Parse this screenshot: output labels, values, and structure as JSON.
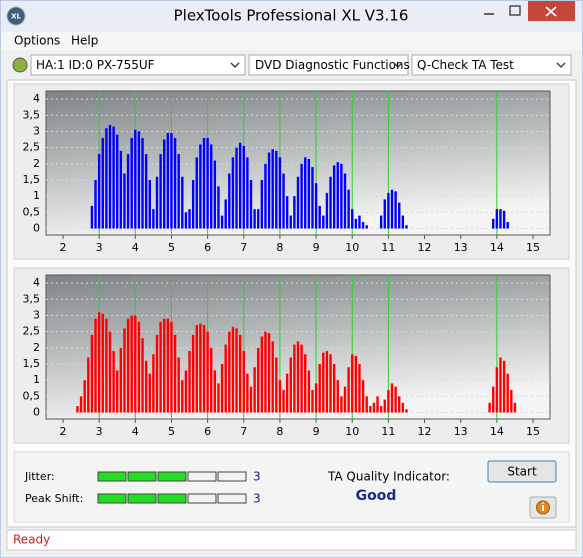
{
  "window": {
    "title": "PlexTools Professional XL V3.16",
    "icon": "XL"
  },
  "menu": [
    "Options",
    "Help"
  ],
  "toolbar": [
    "HA:1 ID:0  PX-755UF",
    "DVD Diagnostic Functions",
    "Q-Check TA Test"
  ],
  "chart_data": [
    {
      "type": "bar",
      "color": "#0000ff",
      "grid": true,
      "marker_color": "#33cc33",
      "xlim": [
        1.53,
        15.47
      ],
      "ylim": [
        -0.2,
        4.25
      ],
      "xticks": [
        2,
        3,
        4,
        5,
        6,
        7,
        8,
        9,
        10,
        11,
        12,
        13,
        14,
        15
      ],
      "yticks": [
        0,
        {
          "value": 0.5,
          "label": "0,5"
        },
        1,
        {
          "value": 1.5,
          "label": "1,5"
        },
        2,
        {
          "value": 2.5,
          "label": "2,5"
        },
        3,
        {
          "value": 3.5,
          "label": "3,5"
        },
        4
      ],
      "markers": [
        3,
        4,
        5,
        6,
        7,
        8,
        9,
        10,
        11,
        14
      ],
      "x": [
        2.8,
        2.9,
        3.0,
        3.1,
        3.2,
        3.3,
        3.4,
        3.5,
        3.6,
        3.7,
        3.8,
        3.9,
        4.0,
        4.1,
        4.2,
        4.3,
        4.4,
        4.5,
        4.6,
        4.7,
        4.8,
        4.9,
        5.0,
        5.1,
        5.2,
        5.3,
        5.4,
        5.5,
        5.6,
        5.7,
        5.8,
        5.9,
        6.0,
        6.1,
        6.2,
        6.3,
        6.4,
        6.5,
        6.6,
        6.7,
        6.8,
        6.9,
        7.0,
        7.1,
        7.2,
        7.3,
        7.4,
        7.5,
        7.6,
        7.7,
        7.8,
        7.9,
        8.0,
        8.1,
        8.2,
        8.3,
        8.4,
        8.5,
        8.6,
        8.7,
        8.8,
        8.9,
        9.0,
        9.1,
        9.2,
        9.3,
        9.4,
        9.5,
        9.6,
        9.7,
        9.8,
        9.9,
        10.0,
        10.1,
        10.2,
        10.3,
        10.4,
        10.5,
        10.6,
        10.7,
        10.8,
        10.9,
        11.0,
        11.1,
        11.2,
        11.3,
        11.4,
        11.5,
        13.9,
        14.0,
        14.1,
        14.2,
        14.3
      ],
      "values": [
        0.7,
        1.5,
        2.3,
        2.8,
        3.1,
        3.2,
        3.15,
        2.9,
        2.4,
        1.7,
        2.3,
        2.8,
        3.05,
        3.0,
        2.8,
        2.3,
        1.5,
        0.6,
        1.6,
        2.3,
        2.75,
        2.95,
        2.95,
        2.8,
        2.3,
        1.6,
        0.5,
        0.6,
        1.5,
        2.2,
        2.6,
        2.8,
        2.8,
        2.6,
        2.1,
        1.3,
        0.4,
        0.9,
        1.7,
        2.2,
        2.5,
        2.65,
        2.55,
        2.2,
        1.5,
        0.6,
        0.6,
        1.5,
        2.0,
        2.35,
        2.45,
        2.4,
        2.2,
        1.7,
        1.0,
        0.4,
        1.0,
        1.6,
        2.0,
        2.2,
        2.15,
        1.9,
        1.4,
        0.7,
        0.4,
        1.1,
        1.6,
        1.95,
        2.05,
        2.0,
        1.7,
        1.2,
        0.6,
        0.3,
        0.4,
        0.2,
        0.1,
        0,
        0,
        0,
        0.4,
        0.9,
        1.1,
        1.2,
        1.15,
        0.8,
        0.4,
        0.1,
        0.3,
        0.6,
        0.6,
        0.55,
        0.2
      ]
    },
    {
      "type": "bar",
      "color": "#ff0000",
      "grid": true,
      "marker_color": "#33cc33",
      "xlim": [
        1.53,
        15.47
      ],
      "ylim": [
        -0.2,
        4.25
      ],
      "xticks": [
        2,
        3,
        4,
        5,
        6,
        7,
        8,
        9,
        10,
        11,
        12,
        13,
        14,
        15
      ],
      "yticks": [
        0,
        {
          "value": 0.5,
          "label": "0,5"
        },
        1,
        {
          "value": 1.5,
          "label": "1,5"
        },
        2,
        {
          "value": 2.5,
          "label": "2,5"
        },
        3,
        {
          "value": 3.5,
          "label": "3,5"
        },
        4
      ],
      "markers": [
        3,
        4,
        5,
        6,
        7,
        8,
        9,
        10,
        11,
        14
      ],
      "x": [
        2.4,
        2.5,
        2.6,
        2.7,
        2.8,
        2.9,
        3.0,
        3.1,
        3.2,
        3.3,
        3.4,
        3.5,
        3.6,
        3.7,
        3.8,
        3.9,
        4.0,
        4.1,
        4.2,
        4.3,
        4.4,
        4.5,
        4.6,
        4.7,
        4.8,
        4.9,
        5.0,
        5.1,
        5.2,
        5.3,
        5.4,
        5.5,
        5.6,
        5.7,
        5.8,
        5.9,
        6.0,
        6.1,
        6.2,
        6.3,
        6.4,
        6.5,
        6.6,
        6.7,
        6.8,
        6.9,
        7.0,
        7.1,
        7.2,
        7.3,
        7.4,
        7.5,
        7.6,
        7.7,
        7.8,
        7.9,
        8.0,
        8.1,
        8.2,
        8.3,
        8.4,
        8.5,
        8.6,
        8.7,
        8.8,
        8.9,
        9.0,
        9.1,
        9.2,
        9.3,
        9.4,
        9.5,
        9.6,
        9.7,
        9.8,
        9.9,
        10.0,
        10.1,
        10.2,
        10.3,
        10.4,
        10.5,
        10.6,
        10.7,
        10.8,
        10.9,
        11.0,
        11.1,
        11.2,
        11.3,
        11.4,
        11.5,
        13.8,
        13.9,
        14.0,
        14.1,
        14.2,
        14.3,
        14.4,
        14.5
      ],
      "values": [
        0.2,
        0.5,
        1.0,
        1.7,
        2.4,
        2.9,
        3.1,
        3.05,
        2.9,
        2.5,
        1.9,
        1.3,
        2.0,
        2.6,
        2.9,
        3.0,
        3.0,
        2.8,
        2.3,
        1.6,
        1.2,
        1.8,
        2.4,
        2.8,
        2.9,
        2.9,
        2.8,
        2.4,
        1.7,
        1.0,
        1.3,
        1.9,
        2.4,
        2.7,
        2.75,
        2.7,
        2.5,
        2.0,
        1.3,
        0.9,
        1.5,
        2.1,
        2.5,
        2.65,
        2.6,
        2.4,
        1.9,
        1.2,
        0.8,
        1.4,
        2.0,
        2.35,
        2.5,
        2.45,
        2.2,
        1.7,
        1.0,
        0.7,
        1.2,
        1.7,
        2.1,
        2.2,
        2.1,
        1.8,
        1.3,
        0.7,
        0.9,
        1.5,
        1.85,
        1.9,
        1.8,
        1.5,
        1.0,
        0.5,
        0.8,
        1.4,
        1.8,
        1.75,
        1.5,
        1.0,
        0.5,
        0.2,
        0.3,
        0.5,
        0.2,
        0.4,
        0.7,
        0.9,
        0.8,
        0.5,
        0.3,
        0.1,
        0.3,
        0.8,
        1.4,
        1.7,
        1.6,
        1.2,
        0.7,
        0.3
      ]
    }
  ],
  "results": {
    "jitter": {
      "label": "Jitter:",
      "value": 3
    },
    "peak_shift": {
      "label": "Peak Shift:",
      "value": 3
    },
    "quality_label": "TA Quality Indicator:",
    "quality": "Good"
  },
  "buttons": {
    "start": "Start"
  },
  "status": "Ready"
}
